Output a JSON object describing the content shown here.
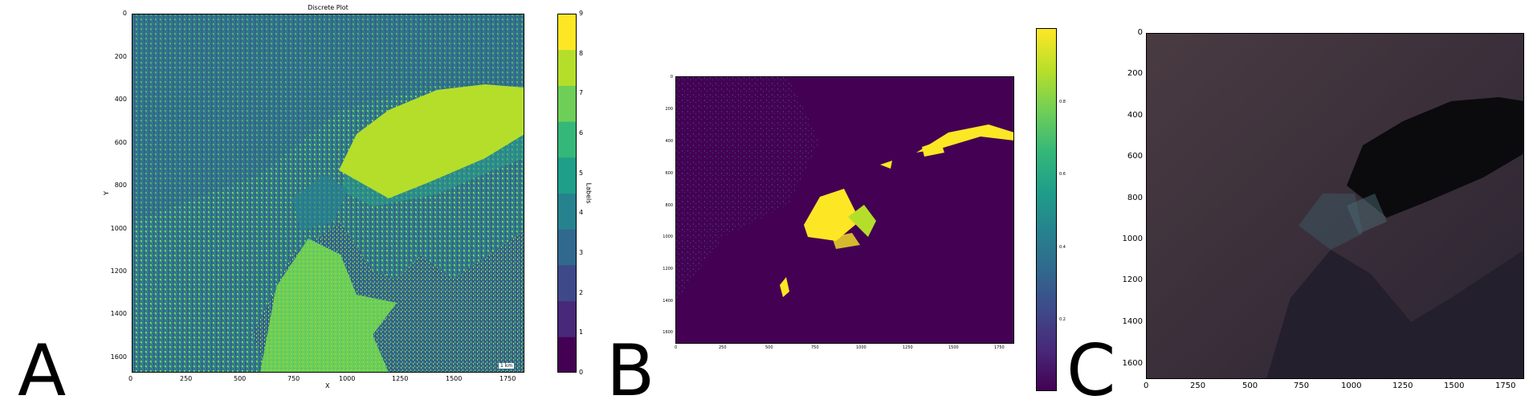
{
  "panels": [
    "A",
    "B",
    "C"
  ],
  "panel_a": {
    "title": "Discrete Plot",
    "xlabel": "X",
    "ylabel": "Y",
    "xticks": [
      "0",
      "250",
      "500",
      "750",
      "1000",
      "1250",
      "1500",
      "1750"
    ],
    "yticks": [
      "0",
      "200",
      "400",
      "600",
      "800",
      "1000",
      "1200",
      "1400",
      "1600"
    ],
    "scalebar": "1 km",
    "colorbar": {
      "label": "Labels",
      "ticks": [
        "0",
        "1",
        "2",
        "3",
        "4",
        "5",
        "6",
        "7",
        "8",
        "9"
      ],
      "colors": [
        "#440154",
        "#482878",
        "#3e4989",
        "#31688e",
        "#26828e",
        "#1f9e89",
        "#35b779",
        "#6ece58",
        "#b5de2b",
        "#fde725"
      ]
    }
  },
  "panel_b": {
    "xticks": [
      "0",
      "250",
      "500",
      "750",
      "1000",
      "1250",
      "1500",
      "1750"
    ],
    "yticks": [
      "0",
      "200",
      "400",
      "600",
      "800",
      "1000",
      "1200",
      "1400",
      "1600"
    ],
    "colorbar_ticks": [
      "0.2",
      "0.4",
      "0.6",
      "0.8"
    ]
  },
  "panel_c": {
    "xticks": [
      "0",
      "250",
      "500",
      "750",
      "1000",
      "1250",
      "1500",
      "1750"
    ],
    "yticks": [
      "0",
      "200",
      "400",
      "600",
      "800",
      "1000",
      "1200",
      "1400",
      "1600"
    ]
  },
  "chart_data": [
    {
      "type": "heatmap",
      "title": "Discrete Plot",
      "xlabel": "X",
      "ylabel": "Y",
      "xlim": [
        0,
        1830
      ],
      "ylim": [
        1680,
        0
      ],
      "colorbar_label": "Labels",
      "colorbar_range": [
        0,
        9
      ],
      "discrete_levels": [
        0,
        1,
        2,
        3,
        4,
        5,
        6,
        7,
        8,
        9
      ],
      "colormap": "viridis"
    },
    {
      "type": "heatmap",
      "xlim": [
        0,
        1830
      ],
      "ylim": [
        1680,
        0
      ],
      "colorbar_ticks": [
        0.2,
        0.4,
        0.6,
        0.8
      ],
      "colormap": "viridis"
    },
    {
      "type": "heatmap",
      "xlim": [
        0,
        1830
      ],
      "ylim": [
        1680,
        0
      ]
    }
  ]
}
